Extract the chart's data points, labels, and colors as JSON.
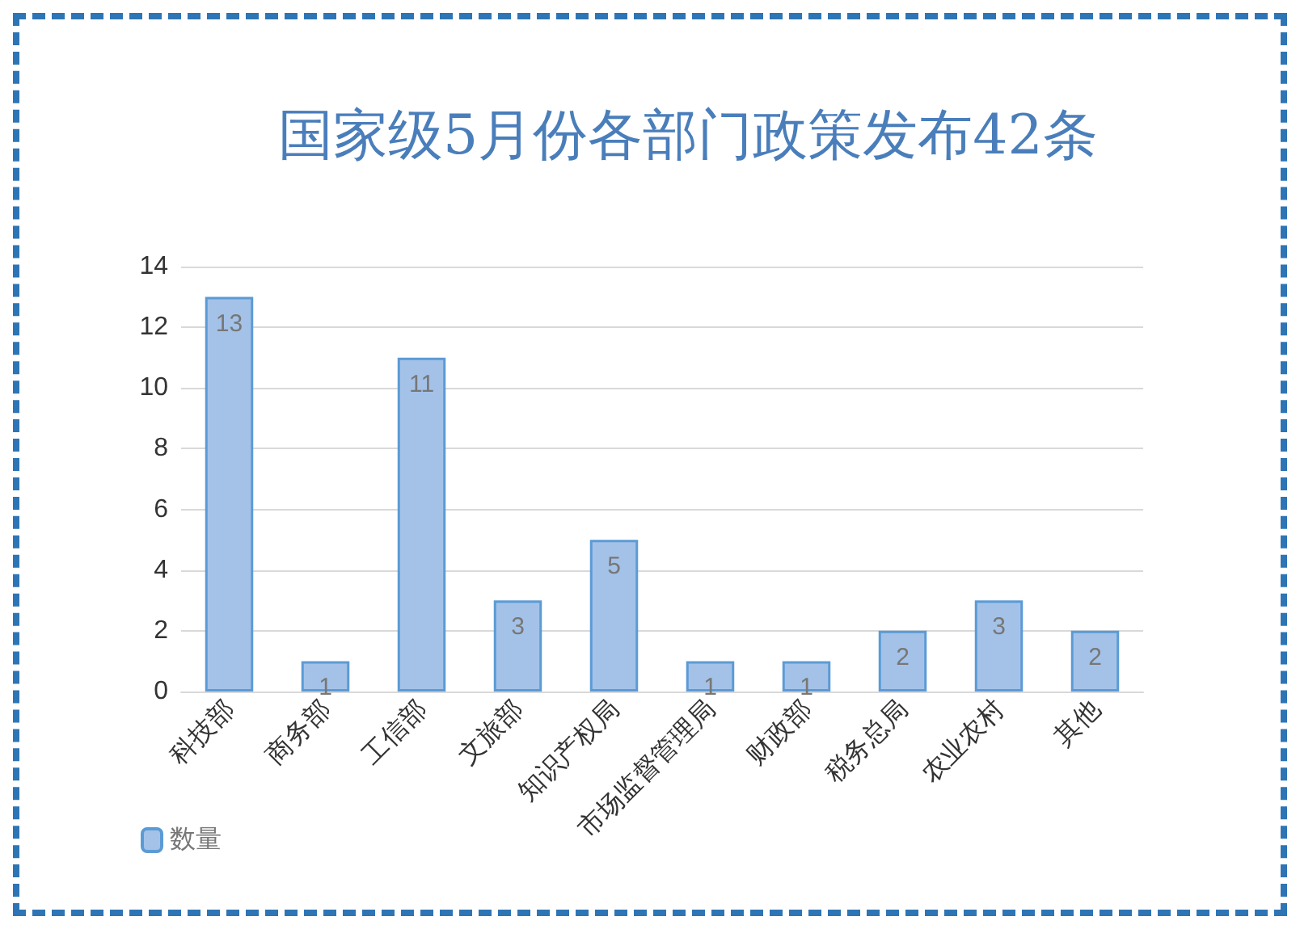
{
  "chart_data": {
    "type": "bar",
    "title": "国家级5月份各部门政策发布42条",
    "categories": [
      "科技部",
      "商务部",
      "工信部",
      "文旅部",
      "知识产权局",
      "市场监督管理局",
      "财政部",
      "税务总局",
      "农业农村",
      "其他"
    ],
    "series": [
      {
        "name": "数量",
        "color": "#a4c2e8",
        "values": [
          13,
          1,
          11,
          3,
          5,
          1,
          1,
          2,
          3,
          2
        ]
      }
    ],
    "ylim": [
      0,
      14
    ],
    "yticks": [
      0,
      2,
      4,
      6,
      8,
      10,
      12,
      14
    ],
    "grid": "y",
    "legend": "bottom left",
    "data_labels": true
  }
}
